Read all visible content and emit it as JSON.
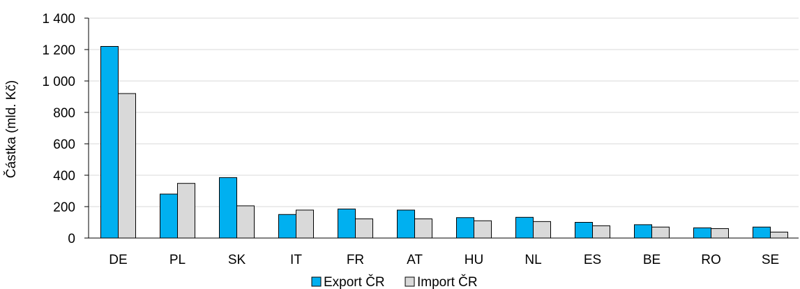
{
  "chart_data": {
    "type": "bar",
    "categories": [
      "DE",
      "PL",
      "SK",
      "IT",
      "FR",
      "AT",
      "HU",
      "NL",
      "ES",
      "BE",
      "RO",
      "SE"
    ],
    "series": [
      {
        "name": "Export ČR",
        "color": "#00B0F0",
        "values": [
          1220,
          280,
          385,
          150,
          185,
          178,
          130,
          132,
          100,
          85,
          65,
          70
        ]
      },
      {
        "name": "Import ČR",
        "color": "#D9D9D9",
        "values": [
          920,
          348,
          205,
          178,
          122,
          122,
          110,
          105,
          78,
          70,
          60,
          38
        ]
      }
    ],
    "title": "",
    "xlabel": "",
    "ylabel": "Částka (mld. Kč)",
    "ylim": [
      0,
      1400
    ],
    "yticks": [
      0,
      200,
      400,
      600,
      800,
      1000,
      1200,
      1400
    ],
    "ytick_labels": [
      "0",
      "200",
      "400",
      "600",
      "800",
      "1 000",
      "1 200",
      "1 400"
    ],
    "grid": true,
    "legend_position": "bottom"
  }
}
